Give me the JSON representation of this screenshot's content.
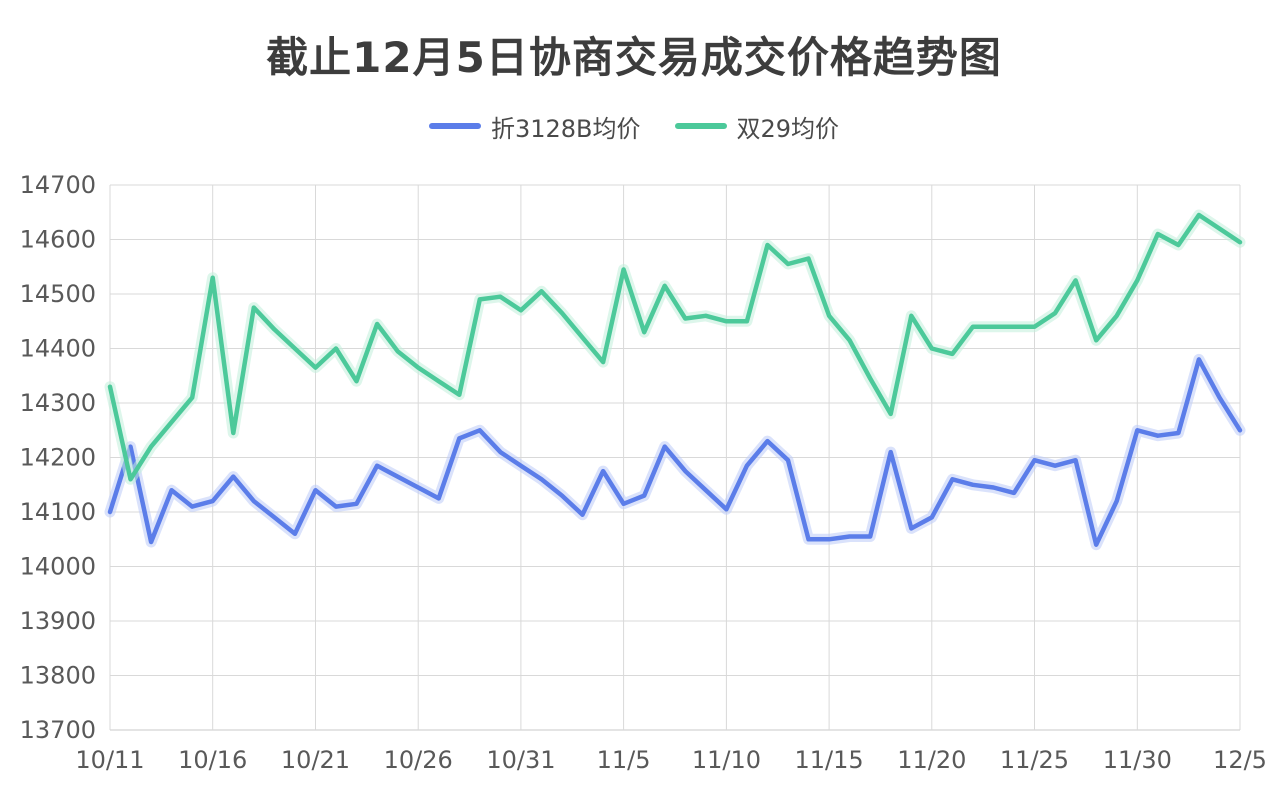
{
  "page": {
    "title": "截止12月5日协商交易成交价格趋势图"
  },
  "chart_data": {
    "type": "line",
    "title": "截止12月5日协商交易成交价格趋势图",
    "legend_position": "top",
    "grid": true,
    "ylim": [
      13700,
      14700
    ],
    "y_ticks": [
      13700,
      13800,
      13900,
      14000,
      14100,
      14200,
      14300,
      14400,
      14500,
      14600,
      14700
    ],
    "x_tick_every": 5,
    "x_tick_labels": [
      "10/11",
      "10/16",
      "10/21",
      "10/26",
      "10/31",
      "11/5",
      "11/10",
      "11/15",
      "11/20",
      "11/25",
      "11/30",
      "12/5"
    ],
    "axis_label_color": "#595959",
    "grid_color": "#d9d9d9",
    "baseline_color": "#c9c9c9",
    "categories": [
      "10/11",
      "10/12",
      "10/13",
      "10/14",
      "10/15",
      "10/16",
      "10/17",
      "10/18",
      "10/19",
      "10/20",
      "10/21",
      "10/22",
      "10/23",
      "10/24",
      "10/25",
      "10/26",
      "10/27",
      "10/28",
      "10/29",
      "10/30",
      "10/31",
      "11/1",
      "11/2",
      "11/3",
      "11/4",
      "11/5",
      "11/6",
      "11/7",
      "11/8",
      "11/9",
      "11/10",
      "11/11",
      "11/12",
      "11/13",
      "11/14",
      "11/15",
      "11/16",
      "11/17",
      "11/18",
      "11/19",
      "11/20",
      "11/21",
      "11/22",
      "11/23",
      "11/24",
      "11/25",
      "11/26",
      "11/27",
      "11/28",
      "11/29",
      "11/30",
      "12/1",
      "12/2",
      "12/3",
      "12/4",
      "12/5"
    ],
    "series": [
      {
        "name": "折3128B均价",
        "color": "#5b7de9",
        "glow": "#bccbf7",
        "values": [
          14100,
          14220,
          14045,
          14140,
          14110,
          14120,
          14165,
          14120,
          14090,
          14060,
          14140,
          14110,
          14115,
          14185,
          14165,
          14145,
          14125,
          14235,
          14250,
          14210,
          14185,
          14160,
          14130,
          14095,
          14175,
          14115,
          14130,
          14220,
          14175,
          14140,
          14105,
          14185,
          14230,
          14195,
          14050,
          14050,
          14055,
          14055,
          14210,
          14070,
          14090,
          14160,
          14150,
          14145,
          14135,
          14195,
          14185,
          14195,
          14040,
          14120,
          14250,
          14240,
          14245,
          14380,
          14310,
          14250
        ]
      },
      {
        "name": "双29均价",
        "color": "#4cc99a",
        "glow": "#c1eeda",
        "values": [
          14330,
          14160,
          14220,
          14265,
          14310,
          14530,
          14245,
          14475,
          14435,
          14400,
          14365,
          14400,
          14340,
          14445,
          14395,
          14365,
          14340,
          14315,
          14490,
          14495,
          14470,
          14505,
          14465,
          14420,
          14375,
          14545,
          14430,
          14515,
          14455,
          14460,
          14450,
          14450,
          14590,
          14555,
          14565,
          14460,
          14415,
          14345,
          14280,
          14460,
          14400,
          14390,
          14440,
          14440,
          14440,
          14440,
          14465,
          14525,
          14415,
          14460,
          14525,
          14610,
          14590,
          14645,
          14620,
          14595
        ]
      }
    ]
  }
}
